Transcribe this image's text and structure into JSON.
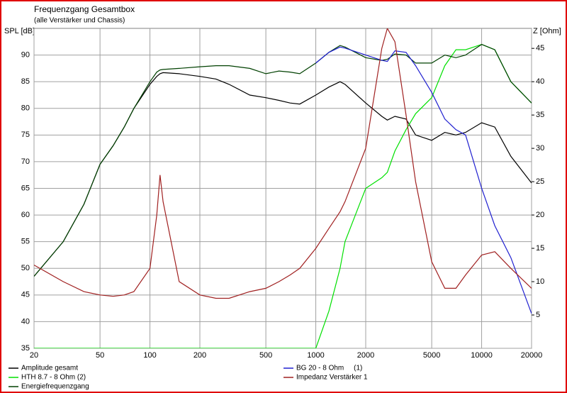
{
  "chart_data": {
    "type": "line",
    "title": "Frequenzgang Gesamtbox",
    "subtitle": "(alle Verstärker und Chassis)",
    "y_label": "SPL [dB]",
    "y2_label": "Z [Ohm]",
    "log_x": true,
    "grid": true,
    "x": [
      20,
      30,
      40,
      50,
      60,
      70,
      80,
      100,
      110,
      115,
      120,
      150,
      200,
      250,
      300,
      400,
      500,
      600,
      700,
      800,
      1000,
      1200,
      1400,
      1500,
      2000,
      2500,
      2700,
      3000,
      3500,
      4000,
      5000,
      6000,
      7000,
      8000,
      10000,
      12000,
      15000,
      20000
    ],
    "xlim": [
      20,
      20000
    ],
    "xticks": [
      20,
      50,
      100,
      200,
      500,
      1000,
      2000,
      5000,
      10000,
      20000
    ],
    "ylim": [
      35,
      95
    ],
    "yticks": [
      35,
      40,
      45,
      50,
      55,
      60,
      65,
      70,
      75,
      80,
      85,
      90
    ],
    "y2lim": [
      0,
      48
    ],
    "y2ticks": [
      5,
      10,
      15,
      20,
      25,
      30,
      35,
      40,
      45
    ],
    "series": [
      {
        "name": "Amplitude gesamt",
        "color": "#000000",
        "values": [
          48.5,
          55,
          62,
          69.5,
          73,
          76.5,
          80,
          84.5,
          86,
          86.5,
          86.7,
          86.5,
          86,
          85.5,
          84.5,
          82.5,
          82,
          81.5,
          81,
          80.8,
          82.5,
          84,
          85,
          84.5,
          81,
          78.5,
          77.8,
          78.5,
          78,
          75,
          74,
          75.5,
          75,
          75.5,
          77.3,
          76.5,
          71,
          66
        ]
      },
      {
        "name": "HTH 8.7 - 8 Ohm (2)",
        "color": "#00e000",
        "values": [
          35,
          35,
          35,
          35,
          35,
          35,
          35,
          35,
          35,
          35,
          35,
          35,
          35,
          35,
          35,
          35,
          35,
          35,
          35,
          35,
          35,
          42,
          50,
          55,
          65,
          67,
          68,
          72,
          76,
          79,
          82,
          88,
          91,
          91,
          92,
          91,
          85,
          81
        ]
      },
      {
        "name": "Energiefrequenzgang",
        "color": "#004000",
        "values": [
          48.5,
          55,
          62,
          69.5,
          73,
          76.5,
          80,
          85,
          86.8,
          87.2,
          87.3,
          87.5,
          87.8,
          88,
          88,
          87.5,
          86.5,
          87,
          86.8,
          86.5,
          88.5,
          90.5,
          91.8,
          91.5,
          89.5,
          89,
          89.2,
          90.2,
          90,
          88.5,
          88.5,
          90,
          89.5,
          90,
          92,
          91,
          85,
          81
        ]
      },
      {
        "name": "BG 20 - 8 Ohm     (1)",
        "color": "#2020d0",
        "values": [
          null,
          null,
          null,
          null,
          null,
          null,
          null,
          null,
          null,
          null,
          null,
          null,
          null,
          null,
          null,
          null,
          null,
          null,
          null,
          null,
          88.5,
          90.5,
          91.5,
          91.3,
          90,
          89,
          88.8,
          90.8,
          90.5,
          88,
          83,
          78,
          76,
          75,
          65,
          58,
          52,
          41.5
        ]
      },
      {
        "name": "Impedanz Verstärker 1",
        "color": "#a02020",
        "axis": "y2",
        "values": [
          12.5,
          10,
          8.5,
          8,
          7.8,
          8,
          8.5,
          12,
          20,
          26,
          22,
          10,
          8,
          7.5,
          7.5,
          8.5,
          9,
          10,
          11,
          12,
          15,
          18,
          20.5,
          22,
          30,
          45,
          48,
          46,
          35,
          25,
          13,
          9,
          9,
          11,
          14,
          14.5,
          12,
          9
        ]
      }
    ]
  }
}
